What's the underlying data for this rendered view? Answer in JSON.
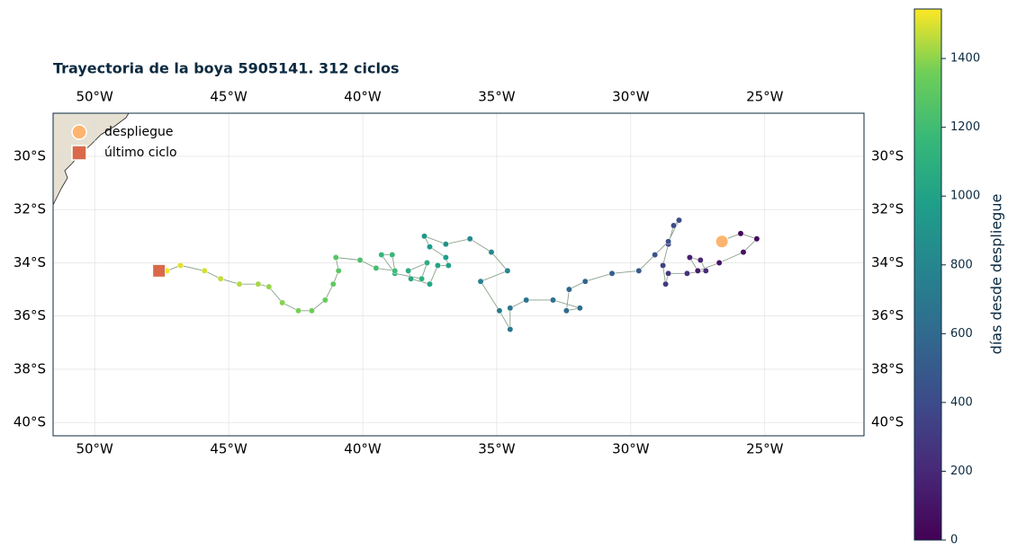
{
  "chart_data": {
    "type": "map-track",
    "title": "Trayectoria de la boya 5905141. 312 ciclos",
    "xlim": [
      -51.55,
      -21.3
    ],
    "ylim": [
      -40.5,
      -28.38
    ],
    "xticks": [
      {
        "value": -50,
        "label": "50°W"
      },
      {
        "value": -45,
        "label": "45°W"
      },
      {
        "value": -40,
        "label": "40°W"
      },
      {
        "value": -35,
        "label": "35°W"
      },
      {
        "value": -30,
        "label": "30°W"
      },
      {
        "value": -25,
        "label": "25°W"
      }
    ],
    "yticks": [
      {
        "value": -30,
        "label": "30°S"
      },
      {
        "value": -32,
        "label": "32°S"
      },
      {
        "value": -34,
        "label": "34°S"
      },
      {
        "value": -36,
        "label": "36°S"
      },
      {
        "value": -38,
        "label": "38°S"
      },
      {
        "value": -40,
        "label": "40°S"
      }
    ],
    "grid": true,
    "colormap": "viridis",
    "x": [
      -26.7,
      -25.9,
      -25.3,
      -25.8,
      -26.7,
      -27.5,
      -27.8,
      -27.4,
      -27.2,
      -27.9,
      -28.6,
      -28.7,
      -28.8,
      -28.6,
      -28.4,
      -28.2,
      -28.6,
      -29.1,
      -29.7,
      -30.7,
      -31.7,
      -32.3,
      -32.4,
      -31.9,
      -32.9,
      -33.9,
      -34.5,
      -34.5,
      -34.9,
      -35.6,
      -34.6,
      -35.2,
      -36.0,
      -36.9,
      -37.7,
      -37.5,
      -36.9,
      -36.8,
      -37.2,
      -37.5,
      -38.2,
      -38.3,
      -37.6,
      -37.8,
      -38.8,
      -39.3,
      -38.9,
      -38.8,
      -39.5,
      -40.1,
      -41.0,
      -40.9,
      -41.1,
      -41.4,
      -41.9,
      -42.4,
      -43.0,
      -43.5,
      -43.9,
      -44.6,
      -45.3,
      -45.9,
      -46.8,
      -47.3
    ],
    "y": [
      -33.2,
      -32.9,
      -33.1,
      -33.6,
      -34.0,
      -34.3,
      -33.8,
      -33.9,
      -34.3,
      -34.4,
      -34.4,
      -34.8,
      -34.1,
      -33.3,
      -32.6,
      -32.4,
      -33.2,
      -33.7,
      -34.3,
      -34.4,
      -34.7,
      -35.0,
      -35.8,
      -35.7,
      -35.4,
      -35.4,
      -35.7,
      -36.5,
      -35.8,
      -34.7,
      -34.3,
      -33.6,
      -33.1,
      -33.3,
      -33.0,
      -33.4,
      -33.8,
      -34.1,
      -34.1,
      -34.8,
      -34.6,
      -34.3,
      -34.0,
      -34.6,
      -34.4,
      -33.7,
      -33.7,
      -34.3,
      -34.2,
      -33.9,
      -33.8,
      -34.3,
      -34.8,
      -35.4,
      -35.8,
      -35.8,
      -35.5,
      -34.9,
      -34.8,
      -34.8,
      -34.6,
      -34.3,
      -34.1,
      -34.3
    ],
    "values": [
      0,
      20,
      45,
      70,
      100,
      130,
      160,
      190,
      220,
      250,
      280,
      310,
      340,
      370,
      400,
      420,
      440,
      470,
      500,
      530,
      560,
      590,
      610,
      630,
      650,
      670,
      690,
      710,
      730,
      760,
      790,
      810,
      840,
      880,
      920,
      950,
      970,
      990,
      1010,
      1030,
      1050,
      1070,
      1090,
      1110,
      1130,
      1150,
      1170,
      1190,
      1210,
      1240,
      1270,
      1290,
      1310,
      1330,
      1350,
      1370,
      1390,
      1410,
      1430,
      1450,
      1470,
      1490,
      1510,
      1530
    ],
    "markers": [
      {
        "name": "despliegue",
        "x": -26.6,
        "y": -33.2,
        "color": "#fdb46e",
        "shape": "circle"
      },
      {
        "name": "último ciclo",
        "x": -47.6,
        "y": -34.3,
        "color": "#d9694a",
        "shape": "square"
      }
    ],
    "colorbar": {
      "label": "días desde despliegue",
      "lim": [
        0,
        1544
      ],
      "ticks": [
        0,
        200,
        400,
        600,
        800,
        1000,
        1200,
        1400
      ]
    }
  }
}
